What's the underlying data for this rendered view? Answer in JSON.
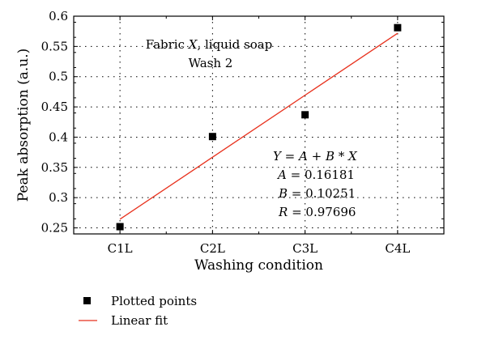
{
  "chart_data": {
    "type": "scatter",
    "title": "",
    "xlabel": "Washing condition",
    "ylabel": "Peak absorption (a.u.)",
    "categories": [
      "C1L",
      "C2L",
      "C3L",
      "C4L"
    ],
    "x": [
      1,
      2,
      3,
      4
    ],
    "ylim": [
      0.24,
      0.6
    ],
    "yticks": [
      "0.25",
      "0.3",
      "0.35",
      "0.4",
      "0.45",
      "0.5",
      "0.55",
      "0.6"
    ],
    "grid": true,
    "series": [
      {
        "name": "Plotted points",
        "kind": "scatter",
        "color": "#000000",
        "values": [
          0.252,
          0.401,
          0.437,
          0.581
        ]
      },
      {
        "name": "Linear fit",
        "kind": "line",
        "color": "#e8321e",
        "intercept": 0.16181,
        "slope": 0.10251
      }
    ],
    "annotations": {
      "title_line1": "Fabric X, liquid soap",
      "title_line1_prefix": "Fabric ",
      "title_line1_italic": "X",
      "title_line1_suffix": ", liquid soap",
      "title_line2": "Wash 2",
      "fit_equation": "Y = A + B * X",
      "fit_equation_Y": "Y",
      "fit_equation_mid": " = ",
      "fit_equation_A": "A",
      "fit_equation_plus": " + ",
      "fit_equation_B": "B",
      "fit_equation_star": " * ",
      "fit_equation_X": "X",
      "fit_A_sym": "A",
      "fit_A_val": " = 0.16181",
      "fit_B_sym": "B",
      "fit_B_val": " = 0.10251",
      "fit_R_sym": "R",
      "fit_R_val": " = 0.97696"
    },
    "legend": {
      "placement": "below",
      "entries": [
        "Plotted points",
        "Linear fit"
      ]
    }
  }
}
